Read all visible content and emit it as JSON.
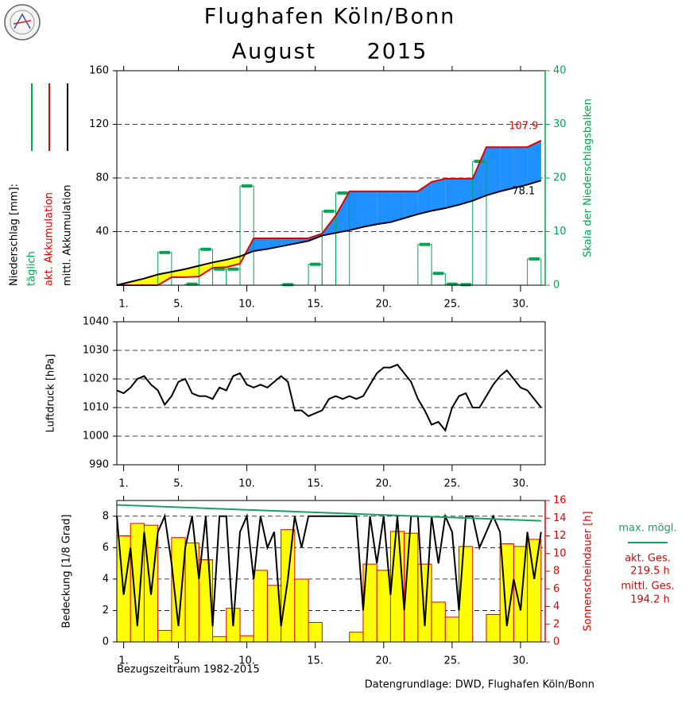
{
  "title": "Flughafen Köln/Bonn",
  "subtitle": "August      2015",
  "reference_period": "Bezugszeitraum 1982-2015",
  "source": "Datengrundlage: DWD, Flughafen Köln/Bonn",
  "chart_data": [
    {
      "type": "precipitation",
      "y_label": "Niederschlag [mm]:",
      "y2_label": "Skala der Niederschlagsbalken",
      "xlim": [
        0.5,
        31.8
      ],
      "xticks": [
        {
          "value": 1,
          "label": "1."
        },
        {
          "value": 5,
          "label": "5."
        },
        {
          "value": 10,
          "label": "10."
        },
        {
          "value": 15,
          "label": "15."
        },
        {
          "value": 20,
          "label": "20."
        },
        {
          "value": 25,
          "label": "25."
        },
        {
          "value": 30,
          "label": "30."
        }
      ],
      "ylim": [
        0,
        160
      ],
      "yticks": [
        40,
        80,
        120,
        160
      ],
      "y2lim": [
        0,
        40
      ],
      "y2ticks": [
        0,
        10,
        20,
        30,
        40
      ],
      "y2_color": "#00a651",
      "grid": true,
      "fill_above_color": "#1e90ff",
      "fill_below_color": "#ffff00",
      "series": [
        {
          "name": "täglich",
          "type": "bar",
          "axis": "y2",
          "color": "#00a651",
          "style": "outline",
          "x": [
            1,
            2,
            3,
            4,
            5,
            6,
            7,
            8,
            9,
            10,
            11,
            12,
            13,
            14,
            15,
            16,
            17,
            18,
            19,
            20,
            21,
            22,
            23,
            24,
            25,
            26,
            27,
            28,
            29,
            30,
            31
          ],
          "values": [
            0,
            0,
            0,
            6.1,
            0,
            0.2,
            6.7,
            3.0,
            3.0,
            18.5,
            0,
            0,
            0.1,
            0,
            3.9,
            13.8,
            17.2,
            0,
            0,
            0,
            0,
            0,
            7.6,
            2.2,
            0.2,
            0.1,
            23.1,
            0,
            0,
            0,
            4.9
          ]
        },
        {
          "name": "akt. Akkumulation",
          "type": "line",
          "color": "#e00000",
          "end_label": "above",
          "x": [
            0.5,
            1.5,
            2.5,
            3.5,
            4.5,
            5.5,
            6.5,
            7.5,
            8.5,
            9.5,
            10.5,
            11.5,
            12.5,
            13.5,
            14.5,
            15.5,
            16.5,
            17.5,
            18.5,
            19.5,
            20.5,
            21.5,
            22.5,
            23.5,
            24.5,
            25.5,
            26.5,
            27.5,
            28.5,
            29.5,
            30.5,
            31.5
          ],
          "values": [
            0,
            0,
            0,
            0,
            6,
            6,
            6.5,
            13,
            13.5,
            16,
            35,
            35,
            35,
            35,
            35,
            38.5,
            52,
            70,
            70,
            70,
            70,
            70,
            70,
            77,
            79.5,
            79.5,
            79.5,
            103,
            103,
            103,
            103,
            107.9
          ]
        },
        {
          "name": "mittl. Akkumulation",
          "type": "line",
          "color": "#000000",
          "end_label": "below",
          "x": [
            0.5,
            1.5,
            2.5,
            3.5,
            4.5,
            5.5,
            6.5,
            7.5,
            8.5,
            9.5,
            10.5,
            11.5,
            12.5,
            13.5,
            14.5,
            15.5,
            16.5,
            17.5,
            18.5,
            19.5,
            20.5,
            21.5,
            22.5,
            23.5,
            24.5,
            25.5,
            26.5,
            27.5,
            28.5,
            29.5,
            30.5,
            31.5
          ],
          "values": [
            0,
            2.5,
            5,
            8,
            10,
            12,
            14.5,
            17,
            19,
            21.5,
            25.5,
            27,
            29,
            31,
            33,
            37,
            39,
            41,
            43.5,
            45.5,
            47,
            50,
            53,
            55.5,
            57.5,
            60,
            63,
            67,
            70,
            72.5,
            75,
            78.1
          ]
        }
      ]
    },
    {
      "type": "line",
      "y_label": "Luftdruck [hPa]",
      "xlim": [
        0.5,
        31.8
      ],
      "xticks": [
        {
          "value": 1,
          "label": "1."
        },
        {
          "value": 5,
          "label": "5."
        },
        {
          "value": 10,
          "label": "10."
        },
        {
          "value": 15,
          "label": "15."
        },
        {
          "value": 20,
          "label": "20."
        },
        {
          "value": 25,
          "label": "25."
        },
        {
          "value": 30,
          "label": "30."
        }
      ],
      "ylim": [
        990,
        1040
      ],
      "yticks": [
        990,
        1000,
        1010,
        1020,
        1030,
        1040
      ],
      "grid": true,
      "series": [
        {
          "type": "line",
          "color": "#000000",
          "x": [
            0.5,
            1,
            1.5,
            2,
            2.5,
            3,
            3.5,
            4,
            4.5,
            5,
            5.5,
            6,
            6.5,
            7,
            7.5,
            8,
            8.5,
            9,
            9.5,
            10,
            10.5,
            11,
            11.5,
            12,
            12.5,
            13,
            13.5,
            14,
            14.5,
            15,
            15.5,
            16,
            16.5,
            17,
            17.5,
            18,
            18.5,
            19,
            19.5,
            20,
            20.5,
            21,
            21.5,
            22,
            22.5,
            23,
            23.5,
            24,
            24.5,
            25,
            25.5,
            26,
            26.5,
            27,
            27.5,
            28,
            28.5,
            29,
            29.5,
            30,
            30.5,
            31,
            31.5
          ],
          "values": [
            1016,
            1015,
            1017,
            1020,
            1021,
            1018,
            1016,
            1011,
            1014,
            1019,
            1020,
            1015,
            1014,
            1014,
            1013,
            1017,
            1016,
            1021,
            1022,
            1018,
            1017,
            1018,
            1017,
            1019,
            1021,
            1019,
            1009,
            1009,
            1007,
            1008,
            1009,
            1013,
            1014,
            1013,
            1014,
            1013,
            1014,
            1018,
            1022,
            1024,
            1024,
            1025,
            1022,
            1019,
            1013,
            1009,
            1004,
            1005,
            1002,
            1010,
            1014,
            1015,
            1010,
            1010,
            1014,
            1018,
            1021,
            1023,
            1020,
            1017,
            1016,
            1013,
            1010
          ]
        }
      ]
    },
    {
      "type": "sunshine",
      "y_label": "Bedeckung [1/8 Grad]",
      "y2_label": "Sonnenscheindauer [h]",
      "xlim": [
        0.5,
        31.8
      ],
      "xticks": [
        {
          "value": 1,
          "label": "1."
        },
        {
          "value": 5,
          "label": "5."
        },
        {
          "value": 10,
          "label": "10."
        },
        {
          "value": 15,
          "label": "15."
        },
        {
          "value": 20,
          "label": "20."
        },
        {
          "value": 25,
          "label": "25."
        },
        {
          "value": 30,
          "label": "30."
        }
      ],
      "ylim": [
        0,
        9
      ],
      "yticks": [
        0,
        2,
        4,
        6,
        8
      ],
      "y2lim": [
        0,
        16
      ],
      "y2ticks": [
        0,
        2,
        4,
        6,
        8,
        10,
        12,
        14,
        16
      ],
      "y2_color": "#e00000",
      "grid": true,
      "annotations": [
        "akt. Ges.",
        "219.5 h",
        "mittl. Ges.",
        "194.2 h"
      ],
      "series": [
        {
          "type": "bar",
          "axis": "y2",
          "color": "#ffff00",
          "edgecolor": "#e00000",
          "x": [
            1,
            2,
            3,
            4,
            5,
            6,
            7,
            8,
            9,
            10,
            11,
            12,
            13,
            14,
            15,
            16,
            17,
            18,
            19,
            20,
            21,
            22,
            23,
            24,
            25,
            26,
            27,
            28,
            29,
            30,
            31
          ],
          "values": [
            12.0,
            13.4,
            13.2,
            1.3,
            11.8,
            11.2,
            9.3,
            0.6,
            3.8,
            0.7,
            8.1,
            6.4,
            12.7,
            7.1,
            2.2,
            0,
            0,
            1.1,
            8.8,
            8.1,
            12.5,
            12.3,
            8.8,
            4.5,
            2.8,
            10.8,
            0,
            3.1,
            11.1,
            10.8,
            11.6
          ]
        },
        {
          "type": "line",
          "color": "#000000",
          "x": [
            0.5,
            1,
            1.5,
            2,
            2.5,
            3,
            3.5,
            4,
            4.5,
            5,
            5.5,
            6,
            6.5,
            7,
            7.5,
            8,
            8.5,
            9,
            9.5,
            10,
            10.5,
            11,
            11.5,
            12,
            12.5,
            13,
            13.5,
            14,
            14.5,
            15,
            15.5,
            16,
            16.5,
            17,
            17.5,
            18,
            18.5,
            19,
            19.5,
            20,
            20.5,
            21,
            21.5,
            22,
            22.5,
            23,
            23.5,
            24,
            24.5,
            25,
            25.5,
            26,
            26.5,
            27,
            27.5,
            28,
            28.5,
            29,
            29.5,
            30,
            30.5,
            31,
            31.5
          ],
          "values": [
            8,
            3,
            6,
            1,
            7,
            3,
            7,
            8,
            5,
            1,
            6,
            8,
            4,
            8,
            1,
            8,
            8,
            1,
            7,
            8,
            4,
            8,
            6,
            7,
            1,
            4,
            8,
            6,
            8,
            8,
            8,
            8,
            8,
            8,
            8,
            8,
            2,
            8,
            5,
            8,
            3,
            8,
            2,
            8,
            8,
            1,
            8,
            5,
            8,
            7,
            2,
            8,
            8,
            6,
            7,
            8,
            7,
            1,
            4,
            2,
            7,
            4,
            7
          ]
        },
        {
          "name": "max. mögl.",
          "type": "line",
          "axis": "y2",
          "color": "#1aa060",
          "x": [
            0.5,
            31.5
          ],
          "values": [
            15.5,
            13.7
          ]
        }
      ]
    }
  ]
}
